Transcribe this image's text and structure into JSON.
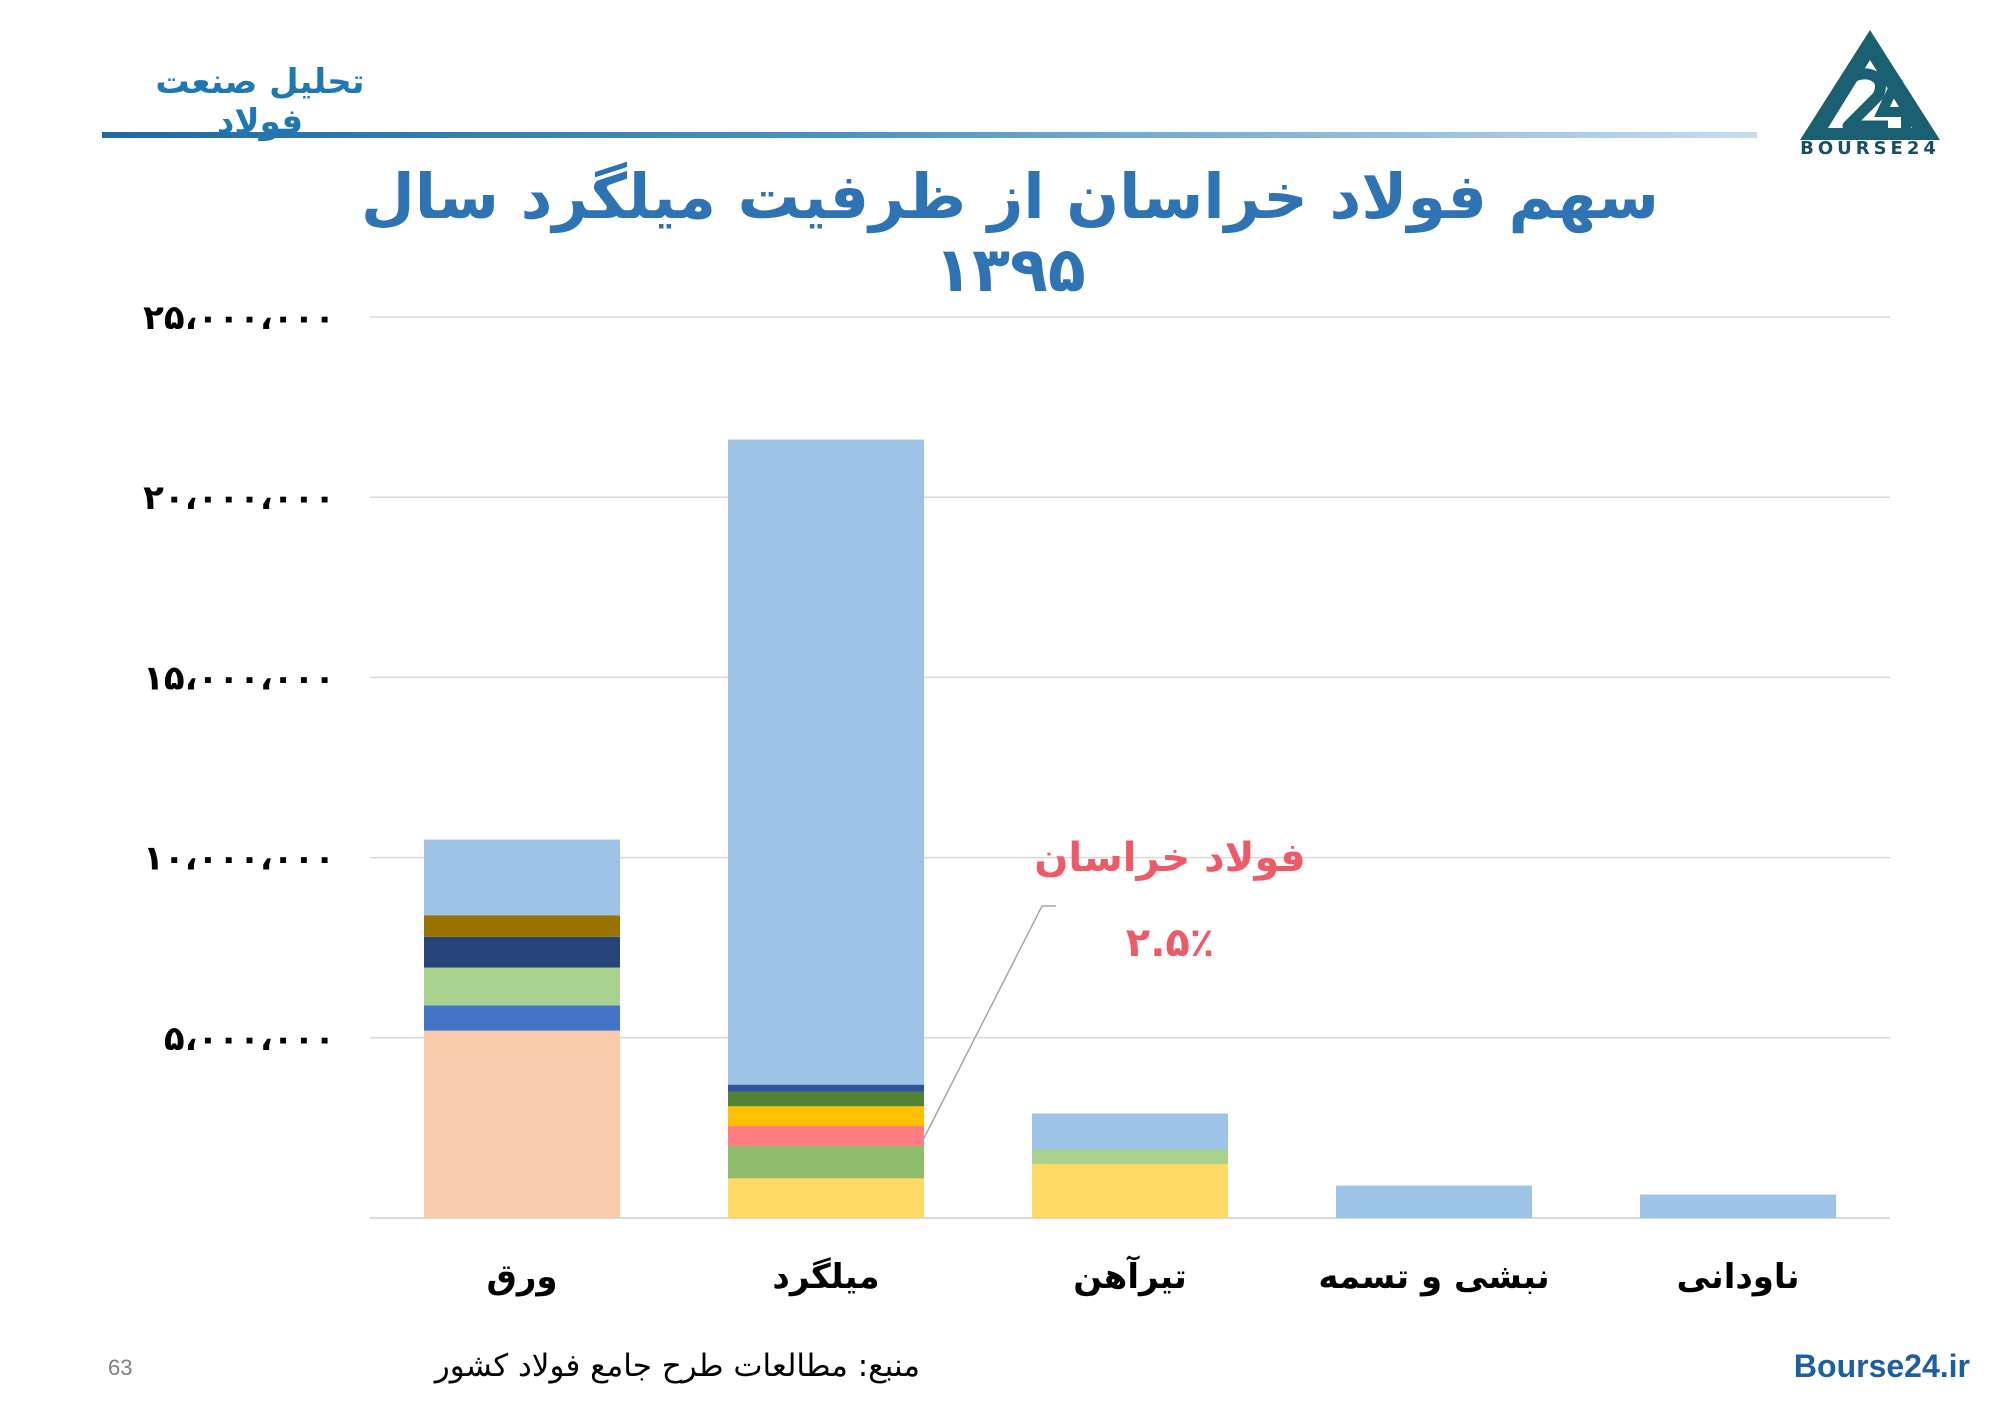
{
  "header": {
    "brand_title": "تحلیل صنعت فولاد",
    "logo_text": "BOURSE24"
  },
  "colors": {
    "title": "#2e74b5",
    "annotation": "#ee5b68",
    "grid": "#d9d9d9",
    "brand": "#1f78b4",
    "logo": "#1a5f72"
  },
  "chart_data": {
    "type": "bar",
    "stacked": true,
    "title": "سهم فولاد خراسان از ظرفیت میلگرد سال ۱۳۹۵",
    "xlabel": "",
    "ylabel": "",
    "categories": [
      "ورق",
      "میلگرد",
      "تیرآهن",
      "نبشی و تسمه",
      "ناودانی"
    ],
    "ylim": [
      0,
      25000000
    ],
    "yticks": [
      5000000,
      10000000,
      15000000,
      20000000,
      25000000
    ],
    "ytick_labels": [
      "۵،۰۰۰،۰۰۰",
      "۱۰،۰۰۰،۰۰۰",
      "۱۵،۰۰۰،۰۰۰",
      "۲۰،۰۰۰،۰۰۰",
      "۲۵،۰۰۰،۰۰۰"
    ],
    "grid": true,
    "legend": "none",
    "stacks": [
      {
        "category": "ورق",
        "segments": [
          {
            "value": 5200000,
            "color": "#f7cbac"
          },
          {
            "value": 700000,
            "color": "#4472c4"
          },
          {
            "value": 1050000,
            "color": "#a9d18e"
          },
          {
            "value": 850000,
            "color": "#264478"
          },
          {
            "value": 600000,
            "color": "#997300"
          },
          {
            "value": 2100000,
            "color": "#9dc3e6"
          }
        ]
      },
      {
        "category": "میلگرد",
        "segments": [
          {
            "value": 1100000,
            "color": "#ffd966"
          },
          {
            "value": 900000,
            "color": "#8fbc6a"
          },
          {
            "value": 550000,
            "color": "#ff7c80",
            "highlight": true
          },
          {
            "value": 550000,
            "color": "#ffc000"
          },
          {
            "value": 400000,
            "color": "#548235"
          },
          {
            "value": 200000,
            "color": "#2f5597"
          },
          {
            "value": 17900000,
            "color": "#9dc3e6"
          }
        ]
      },
      {
        "category": "تیرآهن",
        "segments": [
          {
            "value": 1500000,
            "color": "#ffd966"
          },
          {
            "value": 400000,
            "color": "#a9d18e"
          },
          {
            "value": 1000000,
            "color": "#9dc3e6"
          }
        ]
      },
      {
        "category": "نبشی و تسمه",
        "segments": [
          {
            "value": 900000,
            "color": "#9dc3e6"
          }
        ]
      },
      {
        "category": "ناودانی",
        "segments": [
          {
            "value": 650000,
            "color": "#9dc3e6"
          }
        ]
      }
    ],
    "annotation": {
      "label": "فولاد خراسان",
      "value": "۲.۵٪",
      "category": "میلگرد",
      "color": "#ee5b68"
    }
  },
  "footer": {
    "page_number": "63",
    "source": "منبع: مطالعات طرح جامع فولاد کشور",
    "site": "Bourse24.ir"
  }
}
